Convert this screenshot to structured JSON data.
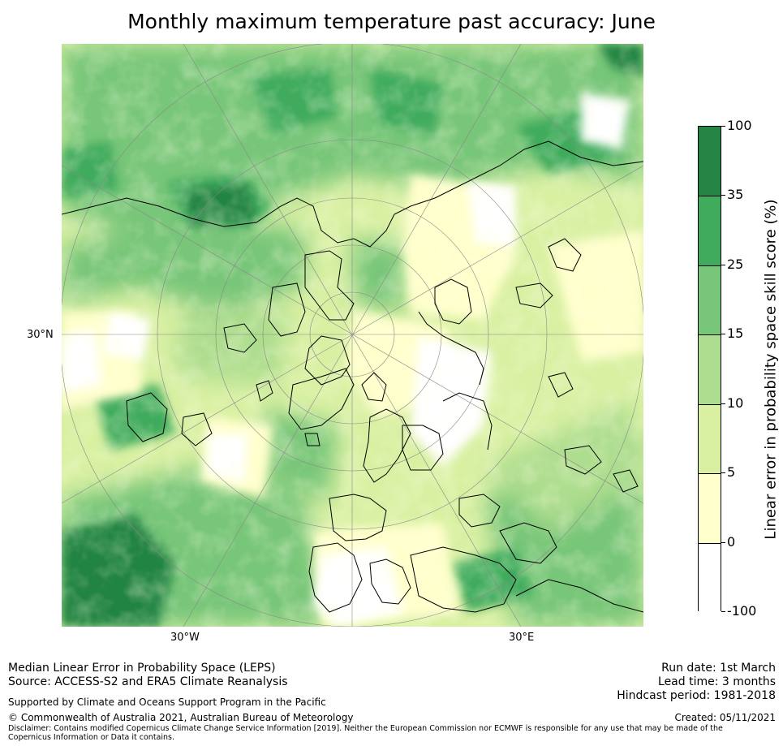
{
  "title": "Monthly maximum temperature past accuracy: June",
  "map": {
    "projection": "north-polar stereographic",
    "lat_labels": [
      "30°N"
    ],
    "lon_labels": [
      "30°W",
      "30°E"
    ]
  },
  "colorbar": {
    "title": "Linear error in probability space skill score (%)",
    "tick_labels": [
      "100",
      "35",
      "25",
      "15",
      "10",
      "5",
      "0",
      "-100"
    ],
    "colors": [
      "#238443",
      "#41ab5d",
      "#78c679",
      "#addd8e",
      "#d9f0a3",
      "#ffffcc",
      "#ffffff"
    ]
  },
  "footer": {
    "line1": "Median Linear Error in Probability Space (LEPS)",
    "line2": "Source: ACCESS-S2 and ERA5 Climate Reanalysis",
    "support": "Supported by Climate and Oceans Support Program in the Pacific",
    "copyright": "© Commonwealth of Australia 2021, Australian Bureau of Meteorology",
    "disclaimer": "Disclaimer: Contains modified Copernicus Climate Change Service Information [2019]. Neither the European Commission nor ECMWF is responsible for any use that may be made of the Copernicus Information or Data it contains.",
    "run_date": "Run date: 1st March",
    "lead_time": "Lead time: 3 months",
    "hindcast": "Hindcast period: 1981-2018",
    "created": "Created: 05/11/2021"
  }
}
